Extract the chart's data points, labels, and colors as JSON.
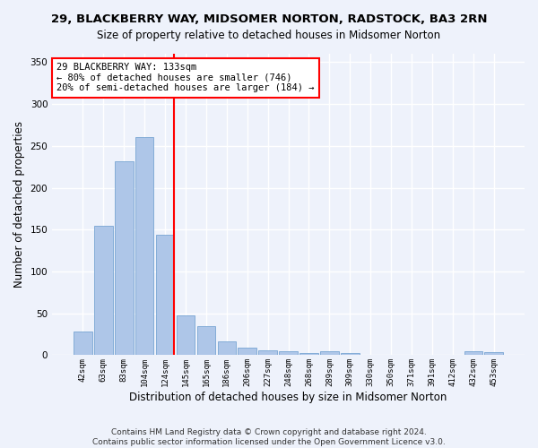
{
  "title": "29, BLACKBERRY WAY, MIDSOMER NORTON, RADSTOCK, BA3 2RN",
  "subtitle": "Size of property relative to detached houses in Midsomer Norton",
  "xlabel": "Distribution of detached houses by size in Midsomer Norton",
  "ylabel": "Number of detached properties",
  "footer_line1": "Contains HM Land Registry data © Crown copyright and database right 2024.",
  "footer_line2": "Contains public sector information licensed under the Open Government Licence v3.0.",
  "bin_labels": [
    "42sqm",
    "63sqm",
    "83sqm",
    "104sqm",
    "124sqm",
    "145sqm",
    "165sqm",
    "186sqm",
    "206sqm",
    "227sqm",
    "248sqm",
    "268sqm",
    "289sqm",
    "309sqm",
    "330sqm",
    "350sqm",
    "371sqm",
    "391sqm",
    "412sqm",
    "432sqm",
    "453sqm"
  ],
  "bar_values": [
    28,
    155,
    232,
    260,
    144,
    48,
    35,
    16,
    9,
    6,
    5,
    3,
    5,
    3,
    0,
    0,
    0,
    0,
    0,
    5,
    4
  ],
  "bar_color": "#aec6e8",
  "bar_edge_color": "#6699cc",
  "vline_color": "red",
  "vline_pos": 4.45,
  "annotation_text": "29 BLACKBERRY WAY: 133sqm\n← 80% of detached houses are smaller (746)\n20% of semi-detached houses are larger (184) →",
  "annotation_box_color": "white",
  "annotation_box_edge_color": "red",
  "ylim": [
    0,
    360
  ],
  "background_color": "#eef2fb",
  "grid_color": "white",
  "title_fontsize": 9.5,
  "subtitle_fontsize": 8.5,
  "xlabel_fontsize": 8.5,
  "ylabel_fontsize": 8.5,
  "footer_fontsize": 6.5
}
